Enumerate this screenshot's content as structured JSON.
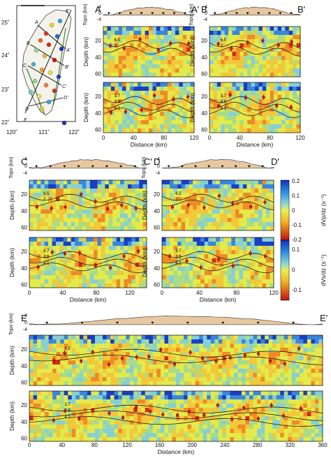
{
  "figure": {
    "map": {
      "lat_ticks": [
        "25˚",
        "24˚",
        "23˚",
        "22˚"
      ],
      "lon_ticks": [
        "120˚",
        "121˚",
        "122˚"
      ],
      "profile_labels": [
        "A",
        "A'",
        "B",
        "B'",
        "C",
        "C'",
        "D",
        "D'",
        "E",
        "E'"
      ]
    },
    "panels": [
      {
        "id": "A",
        "left": "A",
        "right": "A'",
        "dist_max": 120,
        "xticks": [
          "0",
          "40",
          "80",
          "120"
        ]
      },
      {
        "id": "B",
        "left": "B",
        "right": "B'",
        "dist_max": 120,
        "xticks": [
          "0",
          "40",
          "80",
          "120"
        ]
      },
      {
        "id": "C",
        "left": "C",
        "right": "C'",
        "dist_max": 140,
        "xticks": [
          "0",
          "40",
          "80",
          "120"
        ]
      },
      {
        "id": "D",
        "left": "D",
        "right": "D'",
        "dist_max": 120,
        "xticks": [
          "0",
          "40",
          "80",
          "120"
        ]
      },
      {
        "id": "E",
        "left": "E",
        "right": "E'",
        "dist_max": 360,
        "xticks": [
          "0",
          "40",
          "80",
          "120",
          "160",
          "200",
          "240",
          "280",
          "320",
          "360"
        ]
      }
    ],
    "topo_label": "Topo (km)",
    "topo_ticks": [
      "4",
      "0",
      "-4"
    ],
    "depth_label": "Depth (km)",
    "depth_ticks": [
      "20",
      "40",
      "60"
    ],
    "distance_label": "Distance (km)",
    "contours_vp": [
      "6.5",
      "7"
    ],
    "contours_vs": [
      "3.7",
      "3.9",
      "4.1"
    ],
    "colorbars": [
      {
        "label": "dVp/dz (s⁻¹)",
        "ticks": [
          "0.2",
          "0.1",
          "0",
          "-0.1",
          "-0.2"
        ]
      },
      {
        "label": "dVs/dz (s⁻¹)",
        "ticks": [
          "0.1",
          "0",
          "-0.1"
        ]
      }
    ]
  }
}
